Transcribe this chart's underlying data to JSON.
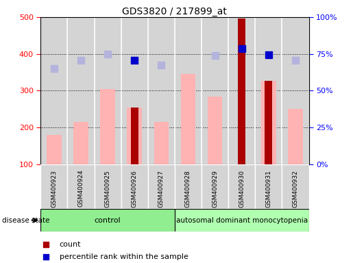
{
  "title": "GDS3820 / 217899_at",
  "samples": [
    "GSM400923",
    "GSM400924",
    "GSM400925",
    "GSM400926",
    "GSM400927",
    "GSM400928",
    "GSM400929",
    "GSM400930",
    "GSM400931",
    "GSM400932"
  ],
  "control_count": 5,
  "disease_count": 5,
  "value_absent": [
    180,
    215,
    305,
    255,
    215,
    345,
    285,
    null,
    327,
    250
  ],
  "rank_absent": [
    360,
    383,
    400,
    null,
    370,
    null,
    395,
    null,
    null,
    383
  ],
  "count_dark": [
    null,
    null,
    null,
    255,
    null,
    null,
    null,
    497,
    327,
    null
  ],
  "percentile_dark": [
    null,
    null,
    null,
    383,
    null,
    null,
    null,
    415,
    397,
    null
  ],
  "ylim_left": [
    100,
    500
  ],
  "ylim_right": [
    0,
    100
  ],
  "yticks_left": [
    100,
    200,
    300,
    400,
    500
  ],
  "yticks_right": [
    0,
    25,
    50,
    75,
    100
  ],
  "right_tick_labels": [
    "0%",
    "25%",
    "50%",
    "75%",
    "100%"
  ],
  "color_dark_red": "#aa0000",
  "color_dark_blue": "#0000cc",
  "color_light_red": "#ffb3b3",
  "color_light_blue": "#b3b3dd",
  "color_control_bg": "#90ee90",
  "color_disease_bg": "#b0ffb0",
  "group_label_control": "control",
  "group_label_disease": "autosomal dominant monocytopenia",
  "disease_state_label": "disease state",
  "bg_gray": "#d4d4d4",
  "bg_white": "#ffffff"
}
